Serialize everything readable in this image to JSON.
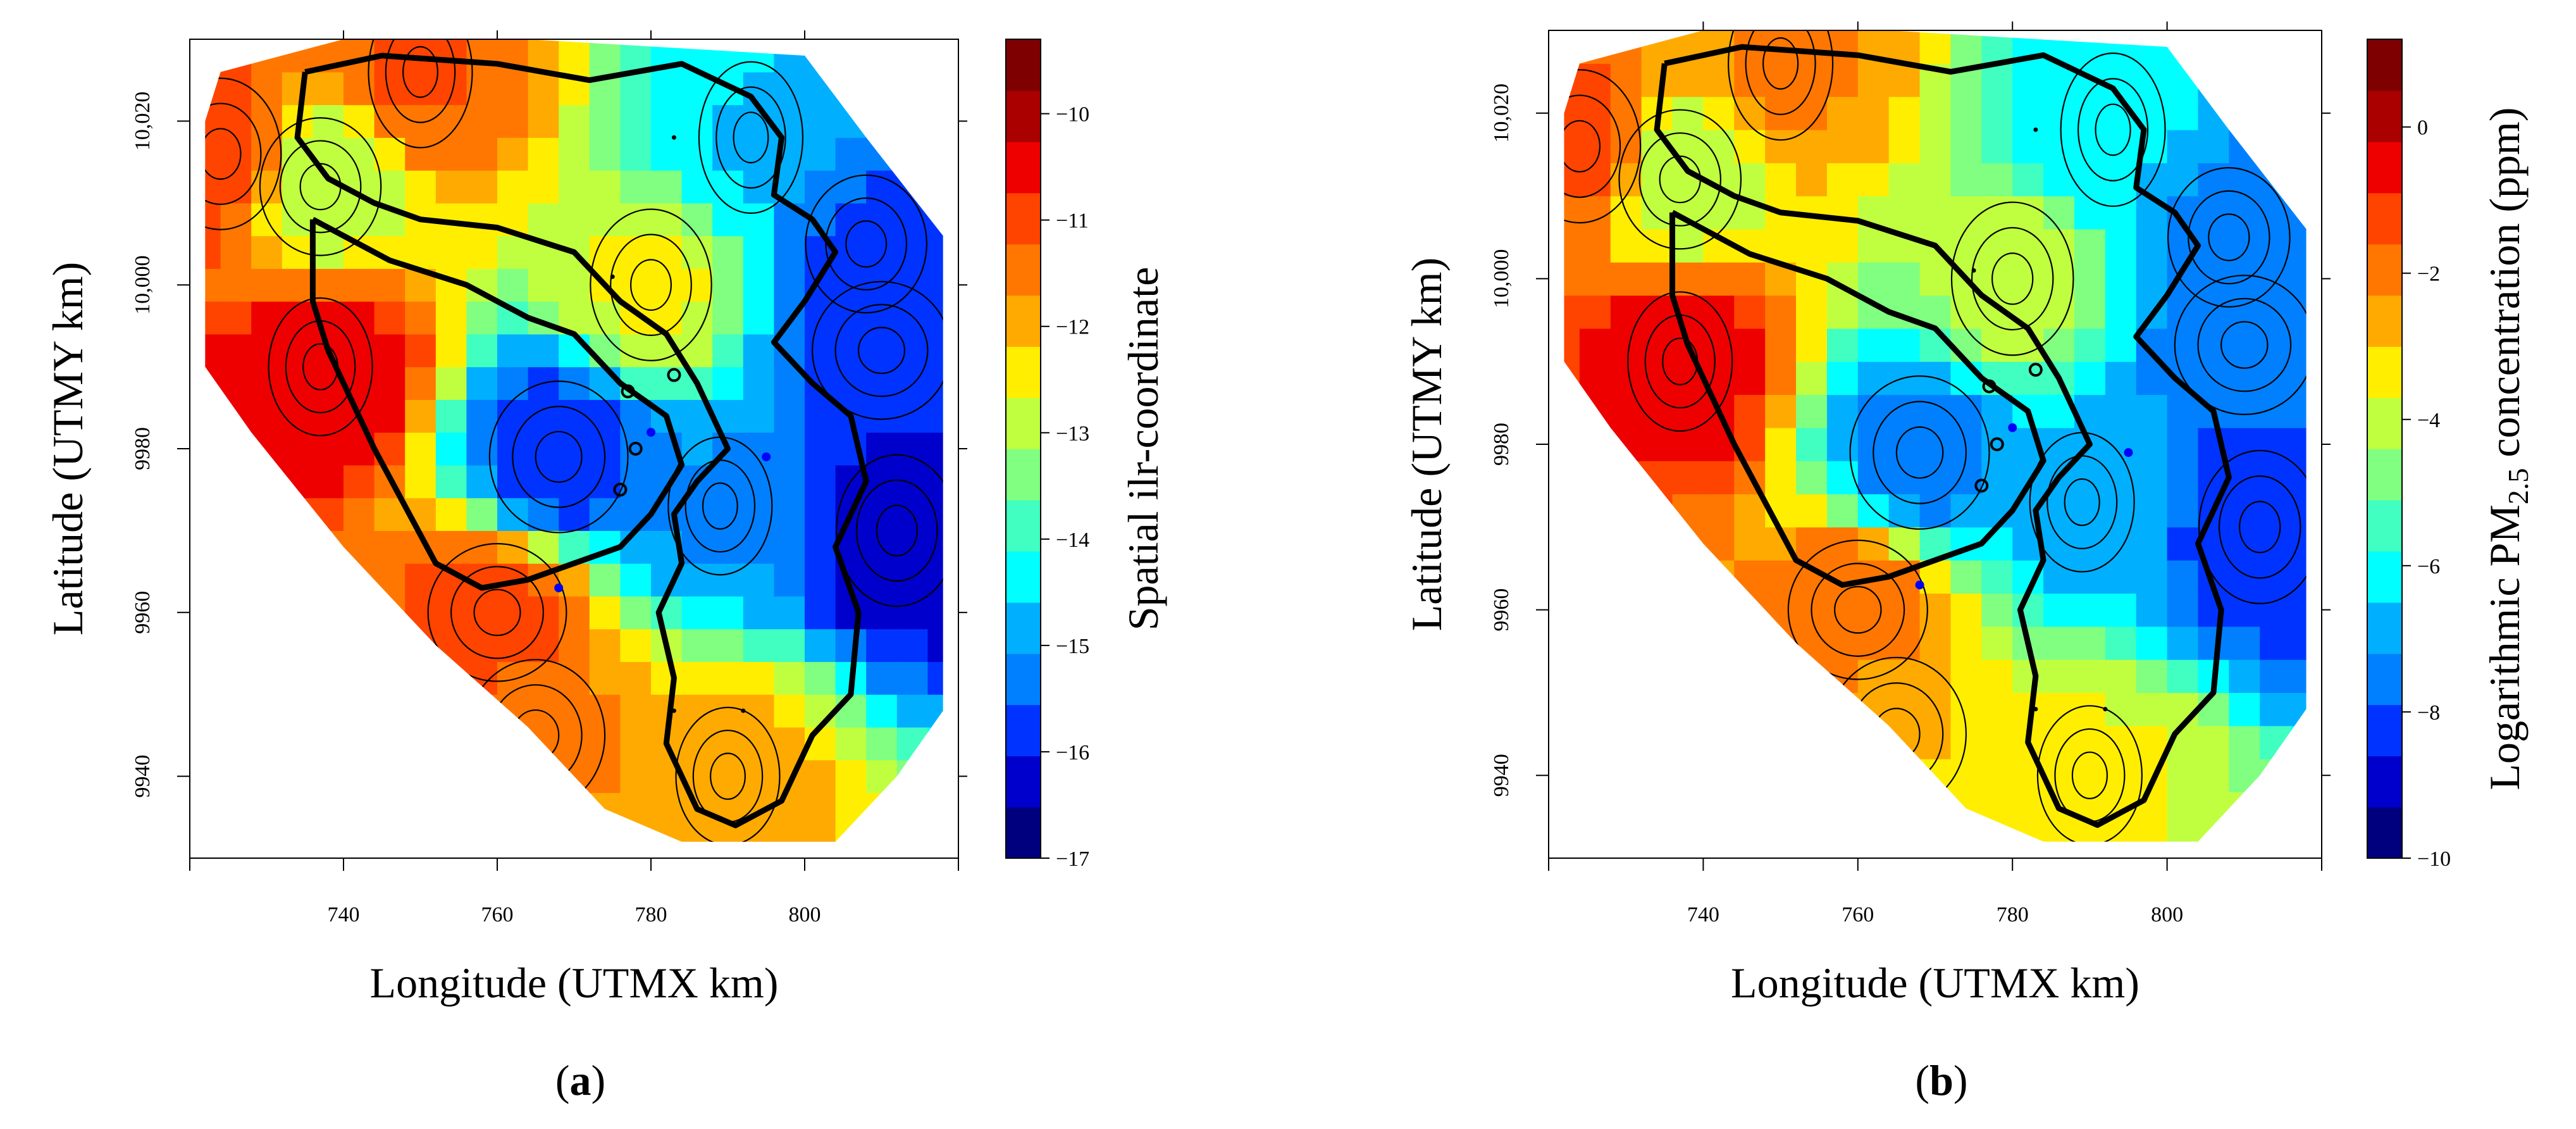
{
  "chart_data": [
    {
      "type": "heatmap",
      "panel_label": "a",
      "title": "",
      "xlabel": "Longitude (UTMX km)",
      "ylabel": "Latitude (UTMY km)",
      "colorbar_label": "Spatial ilr-coordinate",
      "xlim": [
        720,
        820
      ],
      "ylim": [
        9930,
        10030
      ],
      "x_ticks": [
        740,
        760,
        780,
        800
      ],
      "y_ticks": [
        9940,
        9960,
        9980,
        10000,
        10020
      ],
      "y_tick_labels": [
        "9940",
        "9960",
        "9980",
        "10,000",
        "10,020"
      ],
      "colorbar_range": [
        -17,
        -9.3
      ],
      "colorbar_ticks": [
        -17,
        -16,
        -15,
        -14,
        -13,
        -12,
        -11,
        -10
      ],
      "colorbar_tick_labels": [
        "−17",
        "−16",
        "−15",
        "−14",
        "−13",
        "−12",
        "−11",
        "−10"
      ],
      "colorbar_colors": [
        "#00007f",
        "#0000cc",
        "#0033ff",
        "#0080ff",
        "#00b0ff",
        "#00ffff",
        "#40ffc0",
        "#80ff80",
        "#c0ff40",
        "#ffee00",
        "#ffaa00",
        "#ff7700",
        "#ff4400",
        "#ee0000",
        "#aa0000",
        "#7f0000"
      ],
      "grid": false,
      "legend": "right",
      "hotspots": [
        {
          "x": 737,
          "y": 9990,
          "value": -10.3
        },
        {
          "x": 724,
          "y": 10016,
          "value": -10.8
        },
        {
          "x": 760,
          "y": 9960,
          "value": -10.9
        },
        {
          "x": 750,
          "y": 10026,
          "value": -11.2
        },
        {
          "x": 737,
          "y": 10012,
          "value": -13.1
        },
        {
          "x": 768,
          "y": 9979,
          "value": -16.0
        },
        {
          "x": 789,
          "y": 9973,
          "value": -15.1
        },
        {
          "x": 812,
          "y": 9970,
          "value": -16.4
        },
        {
          "x": 810,
          "y": 9992,
          "value": -15.8
        },
        {
          "x": 793,
          "y": 10018,
          "value": -14.6
        },
        {
          "x": 808,
          "y": 10005,
          "value": -15.6
        },
        {
          "x": 765,
          "y": 9945,
          "value": -11.6
        },
        {
          "x": 790,
          "y": 9940,
          "value": -12.0
        },
        {
          "x": 780,
          "y": 10000,
          "value": -12.6
        }
      ]
    },
    {
      "type": "heatmap",
      "panel_label": "b",
      "title": "",
      "xlabel": "Longitude (UTMX km)",
      "ylabel": "Latitude (UTMY km)",
      "colorbar_label_prefix": "Logarithmic PM",
      "colorbar_label_subscript": "2.5",
      "colorbar_label_suffix": " concentration (ppm)",
      "xlim": [
        720,
        820
      ],
      "ylim": [
        9930,
        10030
      ],
      "x_ticks": [
        740,
        760,
        780,
        800
      ],
      "y_ticks": [
        9940,
        9960,
        9980,
        10000,
        10020
      ],
      "y_tick_labels": [
        "9940",
        "9960",
        "9980",
        "10,000",
        "10,020"
      ],
      "colorbar_range": [
        -10,
        1.2
      ],
      "colorbar_ticks": [
        -10,
        -8,
        -6,
        -4,
        -2,
        0
      ],
      "colorbar_tick_labels": [
        "−10",
        "−8",
        "−6",
        "−4",
        "−2",
        "0"
      ],
      "colorbar_colors": [
        "#00007f",
        "#0000cc",
        "#0033ff",
        "#0080ff",
        "#00b0ff",
        "#00ffff",
        "#40ffc0",
        "#80ff80",
        "#c0ff40",
        "#ffee00",
        "#ffaa00",
        "#ff7700",
        "#ff4400",
        "#ee0000",
        "#aa0000",
        "#7f0000"
      ],
      "grid": false,
      "legend": "right",
      "hotspots": [
        {
          "x": 737,
          "y": 9990,
          "value": -0.5
        },
        {
          "x": 724,
          "y": 10016,
          "value": -1.4
        },
        {
          "x": 760,
          "y": 9960,
          "value": -1.6
        },
        {
          "x": 750,
          "y": 10026,
          "value": -2.2
        },
        {
          "x": 737,
          "y": 10012,
          "value": -4.2
        },
        {
          "x": 768,
          "y": 9979,
          "value": -7.6
        },
        {
          "x": 789,
          "y": 9973,
          "value": -6.8
        },
        {
          "x": 812,
          "y": 9970,
          "value": -8.4
        },
        {
          "x": 810,
          "y": 9992,
          "value": -7.8
        },
        {
          "x": 793,
          "y": 10018,
          "value": -6.4
        },
        {
          "x": 808,
          "y": 10005,
          "value": -7.4
        },
        {
          "x": 765,
          "y": 9945,
          "value": -3.0
        },
        {
          "x": 790,
          "y": 9940,
          "value": -3.6
        },
        {
          "x": 780,
          "y": 10000,
          "value": -4.0
        }
      ]
    }
  ]
}
